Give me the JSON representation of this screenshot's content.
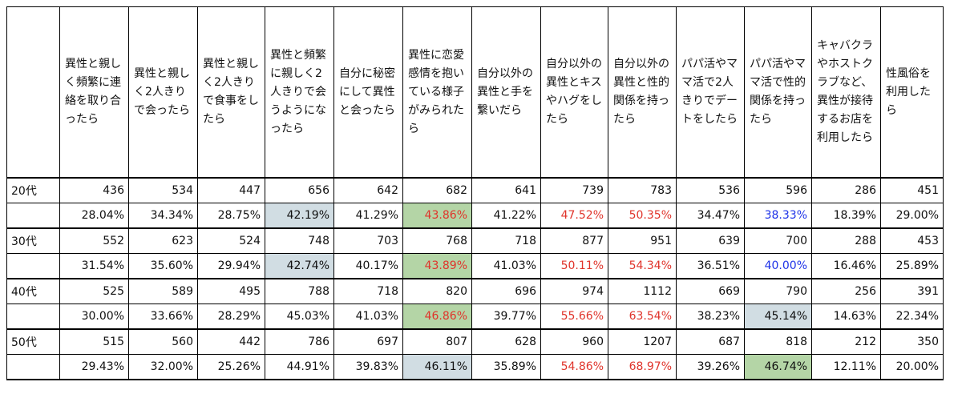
{
  "chart_data": {
    "type": "table",
    "columns": [
      "異性と親しく頻繁に連絡を取り合ったら",
      "異性と親しく2人きりで会ったら",
      "異性と親しく2人きりで食事をしたら",
      "異性と頻繁に親しく2人きりで会うようになったら",
      "自分に秘密にして異性と会ったら",
      "異性に恋愛感情を抱いている様子がみられたら",
      "自分以外の異性と手を繋いだら",
      "自分以外の異性とキスやハグをしたら",
      "自分以外の異性と性的関係を持ったら",
      "パパ活やママ活で2人きりでデートをしたら",
      "パパ活やママ活で性的関係を持ったら",
      "キャバクラやホストクラブなど、異性が接待するお店を利用したら",
      "性風俗を利用したら"
    ],
    "groups": [
      {
        "label": "20代",
        "counts": [
          "436",
          "534",
          "447",
          "656",
          "642",
          "682",
          "641",
          "739",
          "783",
          "536",
          "596",
          "286",
          "451"
        ],
        "percents": [
          "28.04%",
          "34.34%",
          "28.75%",
          "42.19%",
          "41.29%",
          "43.86%",
          "41.22%",
          "47.52%",
          "50.35%",
          "34.47%",
          "38.33%",
          "18.39%",
          "29.00%"
        ]
      },
      {
        "label": "30代",
        "counts": [
          "552",
          "623",
          "524",
          "748",
          "703",
          "768",
          "718",
          "877",
          "951",
          "639",
          "700",
          "288",
          "453"
        ],
        "percents": [
          "31.54%",
          "35.60%",
          "29.94%",
          "42.74%",
          "40.17%",
          "43.89%",
          "41.03%",
          "50.11%",
          "54.34%",
          "36.51%",
          "40.00%",
          "16.46%",
          "25.89%"
        ]
      },
      {
        "label": "40代",
        "counts": [
          "525",
          "589",
          "495",
          "788",
          "718",
          "820",
          "696",
          "974",
          "1112",
          "669",
          "790",
          "256",
          "391"
        ],
        "percents": [
          "30.00%",
          "33.66%",
          "28.29%",
          "45.03%",
          "41.03%",
          "46.86%",
          "39.77%",
          "55.66%",
          "63.54%",
          "38.23%",
          "45.14%",
          "14.63%",
          "22.34%"
        ]
      },
      {
        "label": "50代",
        "counts": [
          "515",
          "560",
          "442",
          "786",
          "697",
          "807",
          "628",
          "960",
          "1207",
          "687",
          "818",
          "212",
          "350"
        ],
        "percents": [
          "29.43%",
          "32.00%",
          "25.26%",
          "44.91%",
          "39.83%",
          "46.11%",
          "35.89%",
          "54.86%",
          "68.97%",
          "39.26%",
          "46.74%",
          "12.11%",
          "20.00%"
        ]
      }
    ],
    "highlights": {
      "green_bg": [
        "0-5",
        "1-5",
        "2-5",
        "3-10"
      ],
      "blue_bg": [
        "0-3",
        "1-3",
        "2-10",
        "3-5"
      ],
      "red_text": [
        "0-5",
        "0-7",
        "0-8",
        "1-5",
        "1-7",
        "1-8",
        "2-5",
        "2-7",
        "2-8",
        "3-7",
        "3-8"
      ],
      "blue_text": [
        "0-10",
        "1-10"
      ]
    },
    "colors": {
      "green_bg": "#b4d5a6",
      "blue_bg": "#d1dde3",
      "red_text": "#e0342b",
      "blue_text": "#1f33e8"
    }
  }
}
